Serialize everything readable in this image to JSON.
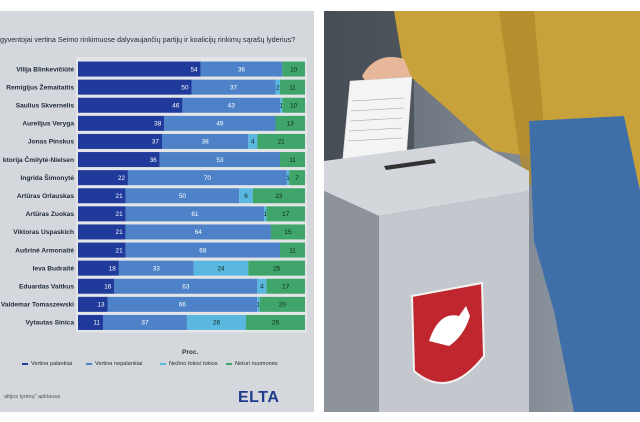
{
  "chart_data": {
    "type": "bar",
    "stacked": true,
    "orientation": "horizontal",
    "title": "e gyventojai vertina Seimo rinkimuose dalyvaujančių partijų ir koalicijų rinkimų sąrašų lyderius?",
    "xlabel": "Proc.",
    "xlim": [
      0,
      100
    ],
    "categories": [
      "Vilija Blinkevičiūtė",
      "Remigijus Žemaitaitis",
      "Saulius Skvernelis",
      "Aurelijus Veryga",
      "Jonas Pinskus",
      "ktorija Čmilytė-Nielsen",
      "Ingrida Šimonytė",
      "Artūras Orlauskas",
      "Artūras Zuokas",
      "Viktoras Uspaskich",
      "Aušrinė Armonaitė",
      "Ieva Budraitė",
      "Eduardas Vaitkus",
      "Valdemar Tomaszewski",
      "Vytautas Sinica"
    ],
    "series": [
      {
        "name": "Vertina palankiai",
        "color": "#1f3a9a",
        "values": [
          54,
          50,
          46,
          38,
          37,
          36,
          22,
          21,
          21,
          21,
          21,
          18,
          16,
          13,
          11
        ]
      },
      {
        "name": "Vertina nepalankiai",
        "color": "#4d82c9",
        "values": [
          36,
          37,
          43,
          49,
          38,
          53,
          70,
          50,
          61,
          64,
          68,
          33,
          63,
          66,
          37
        ]
      },
      {
        "name": "Nežino tokio/ tokios",
        "color": "#5ab7e0",
        "values": [
          0,
          2,
          1,
          0,
          4,
          0,
          1,
          6,
          1,
          0,
          0,
          24,
          4,
          1,
          26
        ]
      },
      {
        "name": "Neturi nuomonės",
        "color": "#3fa56a",
        "values": [
          10,
          11,
          10,
          13,
          21,
          11,
          7,
          23,
          17,
          15,
          11,
          25,
          17,
          20,
          26
        ]
      }
    ],
    "legend": [
      "Vertina palankiai",
      "Vertina nepalankiai",
      "Nežino tokio/ tokios",
      "Neturi nuomonės"
    ]
  },
  "source_note": "altijos tyrimų\" apklausa",
  "logo_text": "ELTA",
  "photo": {
    "description_icon": "ballot-box-photo",
    "ballot_text": "Lithuanian ballot",
    "colors": {
      "jacket": "#c9a13a",
      "jeans": "#3f6fa8",
      "box": "#c7cbd1",
      "coat_of_arms": "#c0262d"
    }
  }
}
